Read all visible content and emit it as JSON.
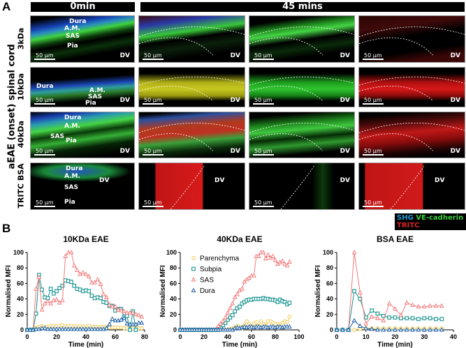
{
  "panel_a": {
    "letter": "A",
    "side_label": "aEAE (onset) spinal cord",
    "col_headers": [
      "0min",
      "45 mins"
    ],
    "rows": [
      "3kDa",
      "10kDa",
      "40kDa",
      "TRITC BSA"
    ],
    "scale_bar": "50 µm",
    "dv_label": "DV",
    "anatomy_labels": {
      "dura": "Dura",
      "am": "A.M.",
      "sas": "SAS",
      "pia": "Pia"
    },
    "channel_legend": {
      "shg": "SHG",
      "ve": "VE-cadherin",
      "tritc": "TRITC"
    },
    "channel_colors": {
      "shg": "#1e9bd7",
      "ve": "#3ad13a",
      "tritc": "#e0202a"
    }
  },
  "panel_b": {
    "letter": "B"
  },
  "chart_data": [
    {
      "type": "line",
      "title": "10KDa EAE",
      "xlabel": "Time (min)",
      "ylabel": "Normalised MFI",
      "xlim": [
        0,
        80
      ],
      "ylim": [
        0,
        100
      ],
      "xticks": [
        0,
        20,
        40,
        60,
        80
      ],
      "yticks": [
        0,
        20,
        40,
        60,
        80,
        100
      ],
      "legend": "none",
      "series": [
        {
          "name": "Parenchyma",
          "x": [
            0,
            2,
            4,
            6,
            8,
            10,
            12,
            14,
            16,
            18,
            20,
            22,
            24,
            26,
            28,
            30,
            32,
            34,
            36,
            38,
            40,
            42,
            44,
            46,
            48,
            50,
            52,
            54,
            56,
            58,
            60,
            62,
            64,
            66,
            68,
            70,
            72,
            74,
            76,
            78
          ],
          "y": [
            0,
            0,
            1,
            3,
            4,
            5,
            4,
            4,
            5,
            5,
            5,
            5,
            6,
            5,
            5,
            5,
            5,
            4,
            5,
            4,
            5,
            5,
            4,
            4,
            4,
            4,
            4,
            4,
            3,
            3,
            3,
            3,
            3,
            2,
            2,
            2,
            2,
            2,
            2,
            2
          ]
        },
        {
          "name": "Subpia",
          "x": [
            0,
            2,
            4,
            6,
            8,
            10,
            12,
            14,
            16,
            18,
            20,
            22,
            24,
            26,
            28,
            30,
            32,
            34,
            36,
            38,
            40,
            42,
            44,
            46,
            48,
            50,
            52,
            54,
            56,
            58,
            60,
            62,
            64,
            66,
            68,
            70,
            72,
            74
          ],
          "y": [
            0,
            0,
            0,
            21,
            71,
            52,
            42,
            41,
            53,
            47,
            50,
            54,
            57,
            64,
            63,
            62,
            57,
            53,
            52,
            50,
            51,
            50,
            44,
            41,
            42,
            41,
            36,
            35,
            31,
            31,
            25,
            27,
            27,
            17,
            18,
            0,
            24,
            0
          ]
        },
        {
          "name": "SAS",
          "x": [
            0,
            2,
            4,
            6,
            8,
            10,
            12,
            14,
            16,
            18,
            20,
            22,
            24,
            26,
            28,
            30,
            32,
            34,
            36,
            38,
            40,
            42,
            44,
            46,
            48,
            50,
            52,
            54,
            56,
            58,
            60,
            62,
            64,
            66,
            68,
            70,
            72,
            74,
            76,
            78
          ],
          "y": [
            0,
            0,
            0,
            53,
            68,
            26,
            34,
            37,
            34,
            38,
            39,
            35,
            38,
            95,
            100,
            100,
            83,
            77,
            72,
            74,
            72,
            69,
            61,
            61,
            65,
            59,
            46,
            42,
            32,
            30,
            30,
            26,
            25,
            24,
            22,
            22,
            22,
            20,
            19,
            17
          ]
        },
        {
          "name": "Dura",
          "x": [
            0,
            2,
            4,
            6,
            8,
            10,
            12,
            14,
            16,
            18,
            20,
            22,
            24,
            26,
            28,
            30,
            32,
            34,
            36,
            38,
            40,
            42,
            44,
            46,
            48,
            50,
            52,
            54,
            56,
            58,
            60,
            62,
            64,
            66,
            68,
            70,
            72,
            74,
            76,
            78
          ],
          "y": [
            0,
            0,
            0,
            1,
            1,
            2,
            2,
            1,
            1,
            1,
            1,
            1,
            1,
            1,
            1,
            1,
            1,
            1,
            1,
            1,
            1,
            1,
            1,
            1,
            1,
            1,
            1,
            2,
            7,
            14,
            12,
            12,
            13,
            15,
            8,
            7,
            7,
            7,
            9,
            9
          ]
        }
      ]
    },
    {
      "type": "line",
      "title": "40KDa EAE",
      "xlabel": "Time (min)",
      "ylabel": "Normalised MFI",
      "xlim": [
        0,
        100
      ],
      "ylim": [
        0,
        100
      ],
      "xticks": [
        0,
        20,
        40,
        60,
        80,
        100
      ],
      "yticks": [
        0,
        20,
        40,
        60,
        80,
        100
      ],
      "legend": "top-left",
      "series": [
        {
          "name": "Parenchyma",
          "x": [
            0,
            2,
            4,
            6,
            8,
            10,
            12,
            14,
            16,
            18,
            20,
            22,
            24,
            26,
            28,
            30,
            32,
            34,
            36,
            38,
            40,
            42,
            44,
            46,
            48,
            50,
            52,
            54,
            56,
            58,
            60,
            62,
            64,
            66,
            68,
            70,
            72,
            74,
            76,
            78,
            80,
            82,
            84,
            86,
            88,
            90,
            92
          ],
          "y": [
            0,
            0,
            0,
            0,
            0,
            0,
            0,
            0,
            0,
            0,
            0,
            0,
            0,
            0,
            0,
            0,
            0,
            0,
            0,
            0,
            0,
            1,
            2,
            3,
            5,
            4,
            2,
            6,
            11,
            8,
            4,
            8,
            10,
            5,
            11,
            8,
            6,
            11,
            11,
            9,
            7,
            8,
            7,
            9,
            11,
            10,
            17
          ]
        },
        {
          "name": "Subpia",
          "x": [
            0,
            2,
            4,
            6,
            8,
            10,
            12,
            14,
            16,
            18,
            20,
            22,
            24,
            26,
            28,
            30,
            32,
            34,
            36,
            38,
            40,
            42,
            44,
            46,
            48,
            50,
            52,
            54,
            56,
            58,
            60,
            62,
            64,
            66,
            68,
            70,
            72,
            74,
            76,
            78,
            80,
            82,
            84,
            86,
            88,
            90,
            92
          ],
          "y": [
            0,
            0,
            0,
            0,
            0,
            0,
            0,
            0,
            0,
            0,
            0,
            0,
            0,
            0,
            0,
            0,
            0,
            3,
            6,
            9,
            13,
            16,
            19,
            24,
            28,
            30,
            34,
            36,
            38,
            39,
            39,
            40,
            40,
            40,
            40,
            41,
            40,
            40,
            39,
            39,
            38,
            36,
            39,
            37,
            36,
            33,
            35
          ]
        },
        {
          "name": "SAS",
          "x": [
            0,
            2,
            4,
            6,
            8,
            10,
            12,
            14,
            16,
            18,
            20,
            22,
            24,
            26,
            28,
            30,
            32,
            34,
            36,
            38,
            40,
            42,
            44,
            46,
            48,
            50,
            52,
            54,
            56,
            58,
            60,
            62,
            64,
            66,
            68,
            70,
            72,
            74,
            76,
            78,
            80,
            82,
            84,
            86,
            88,
            90,
            92
          ],
          "y": [
            0,
            0,
            0,
            0,
            0,
            0,
            0,
            0,
            0,
            0,
            0,
            0,
            0,
            0,
            0,
            0,
            5,
            8,
            11,
            16,
            22,
            28,
            34,
            42,
            46,
            51,
            53,
            62,
            65,
            67,
            70,
            70,
            95,
            95,
            100,
            100,
            92,
            97,
            93,
            95,
            90,
            85,
            87,
            89,
            85,
            83,
            88
          ]
        },
        {
          "name": "Dura",
          "x": [
            0,
            2,
            4,
            6,
            8,
            10,
            12,
            14,
            16,
            18,
            20,
            22,
            24,
            26,
            28,
            30,
            32,
            34,
            36,
            38,
            40,
            42,
            44,
            46,
            48,
            50,
            52,
            54,
            56,
            58,
            60,
            62,
            64,
            66,
            68,
            70,
            72,
            74,
            76,
            78,
            80,
            82,
            84,
            86,
            88,
            90,
            92
          ],
          "y": [
            0,
            0,
            0,
            0,
            0,
            0,
            0,
            0,
            0,
            0,
            0,
            0,
            0,
            0,
            0,
            0,
            0,
            0,
            0,
            0,
            0,
            0,
            0,
            2,
            3,
            2,
            3,
            4,
            3,
            4,
            4,
            3,
            4,
            4,
            3,
            4,
            4,
            3,
            4,
            4,
            3,
            4,
            4,
            3,
            4,
            4,
            4
          ]
        }
      ]
    },
    {
      "type": "line",
      "title": "BSA EAE",
      "xlabel": "Time (min)",
      "ylabel": "Normalised MFI",
      "xlim": [
        0,
        40
      ],
      "ylim": [
        0,
        100
      ],
      "xticks": [
        0,
        10,
        20,
        30,
        40
      ],
      "yticks": [
        0,
        20,
        40,
        60,
        80,
        100
      ],
      "legend": "none",
      "series": [
        {
          "name": "Parenchyma",
          "x": [
            4,
            6,
            8,
            10,
            12,
            14,
            16,
            18,
            20,
            22,
            24,
            26,
            28,
            30,
            32,
            34,
            36
          ],
          "y": [
            0,
            0,
            1,
            2,
            2,
            2,
            2,
            2,
            2,
            2,
            2,
            2,
            2,
            2,
            2,
            2,
            2
          ]
        },
        {
          "name": "Subpia",
          "x": [
            0,
            2,
            4,
            6,
            8,
            10,
            12,
            14,
            16,
            18,
            20,
            22,
            24,
            26,
            28,
            30,
            32,
            34,
            36
          ],
          "y": [
            0,
            0,
            0,
            50,
            40,
            16,
            25,
            21,
            18,
            16,
            16,
            15,
            15,
            15,
            14,
            15,
            15,
            14,
            14
          ]
        },
        {
          "name": "SAS",
          "x": [
            0,
            2,
            4,
            6,
            8,
            10,
            12,
            14,
            16,
            18,
            20,
            22,
            24,
            26,
            28,
            30,
            32,
            34,
            36
          ],
          "y": [
            0,
            0,
            0,
            100,
            48,
            8,
            17,
            15,
            12,
            34,
            27,
            19,
            35,
            32,
            30,
            30,
            31,
            31,
            31
          ]
        },
        {
          "name": "Dura",
          "x": [
            0,
            2,
            4,
            6,
            8,
            10,
            12,
            14,
            16,
            18,
            20,
            22,
            24,
            26,
            28,
            30,
            32,
            34,
            36
          ],
          "y": [
            0,
            0,
            0,
            12,
            5,
            2,
            1,
            0,
            0,
            0,
            0,
            0,
            0,
            0,
            0,
            0,
            0,
            0,
            0
          ]
        }
      ]
    }
  ],
  "series_colors": {
    "Parenchyma": "#f2c94c",
    "Subpia": "#17938f",
    "SAS": "#f27b7b",
    "Dura": "#1d5fa6"
  },
  "series_markers": {
    "Parenchyma": "circle",
    "Subpia": "square",
    "SAS": "triangle",
    "Dura": "triangle"
  }
}
